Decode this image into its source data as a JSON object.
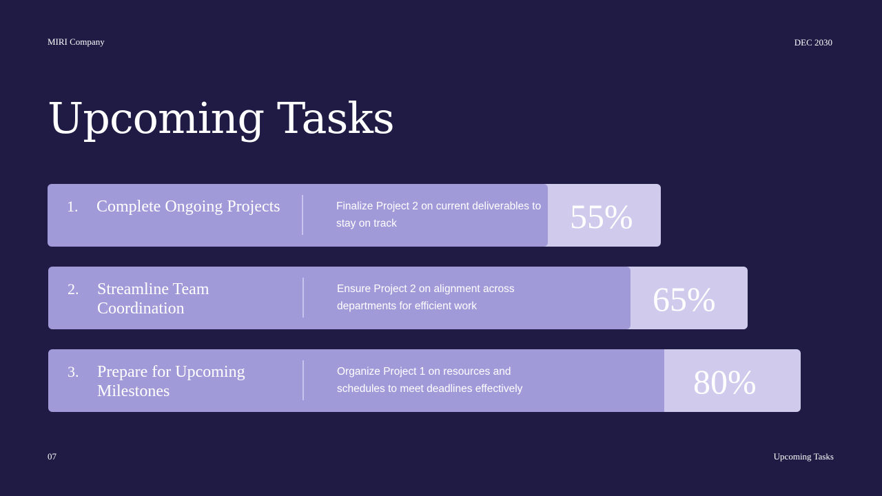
{
  "header": {
    "company": "MIRI Company",
    "date": "DEC 2030"
  },
  "title": "Upcoming Tasks",
  "tasks": [
    {
      "number": "1.",
      "name": "Complete Ongoing Projects",
      "description": "Finalize Project 2 on current deliverables to stay on track",
      "progress_label": "55%",
      "progress": 55
    },
    {
      "number": "2.",
      "name": "Streamline Team Coordination",
      "description": "Ensure Project 2 on alignment across departments for efficient work",
      "progress_label": "65%",
      "progress": 65
    },
    {
      "number": "3.",
      "name": "Prepare for Upcoming Milestones",
      "description": "Organize Project 1 on resources and schedules to meet deadlines effectively",
      "progress_label": "80%",
      "progress": 80
    }
  ],
  "footer": {
    "page": "07",
    "section": "Upcoming Tasks"
  },
  "colors": {
    "background": "#1f1b45",
    "bar_dark": "#a09ad9",
    "bar_light": "#d0cbec"
  }
}
